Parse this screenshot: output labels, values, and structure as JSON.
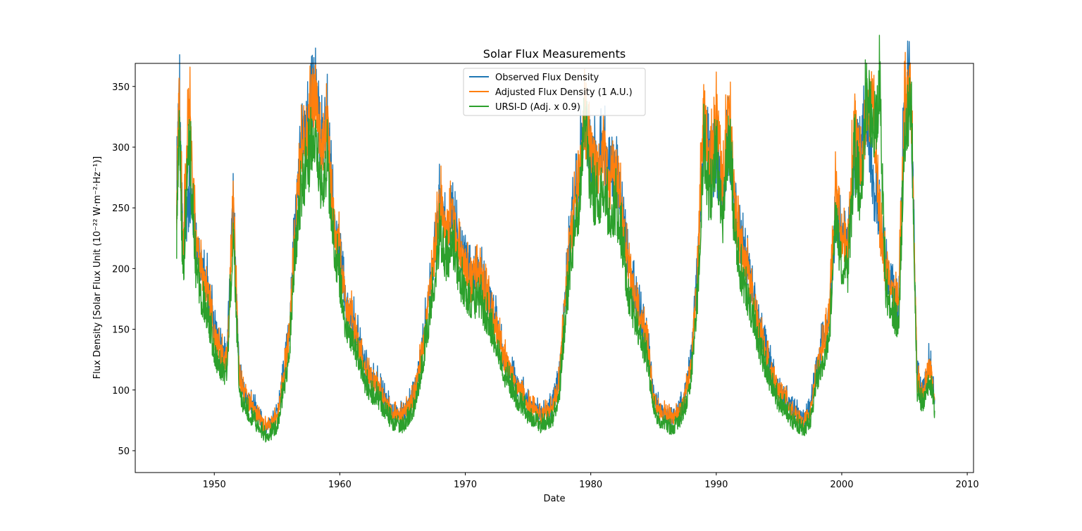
{
  "chart_data": {
    "type": "line",
    "title": "Solar Flux Measurements",
    "xlabel": "Date",
    "ylabel": "Flux Density [Solar Flux Unit (10⁻²² W·m⁻²·Hz⁻¹)]",
    "xlim": [
      1943.7,
      2010.5
    ],
    "ylim": [
      32,
      369
    ],
    "x_ticks": [
      1950,
      1960,
      1970,
      1980,
      1990,
      2000,
      2010
    ],
    "y_ticks": [
      50,
      100,
      150,
      200,
      250,
      300,
      350
    ],
    "grid": false,
    "legend_position": "top-center",
    "x_range": [
      1947.0,
      2007.4
    ],
    "series": [
      {
        "name": "Observed Flux Density",
        "color": "#1f77b4",
        "x": [
          1947.0,
          1947.2,
          1947.5,
          1948.0,
          1948.5,
          1949.0,
          1949.5,
          1950.0,
          1950.5,
          1951.0,
          1951.5,
          1952.0,
          1952.5,
          1953.0,
          1953.5,
          1954.0,
          1954.5,
          1955.0,
          1955.5,
          1956.0,
          1956.5,
          1957.0,
          1957.5,
          1958.0,
          1958.5,
          1959.0,
          1959.5,
          1960.0,
          1960.5,
          1961.0,
          1961.5,
          1962.0,
          1962.5,
          1963.0,
          1963.5,
          1964.0,
          1964.5,
          1965.0,
          1965.5,
          1966.0,
          1966.5,
          1967.0,
          1967.5,
          1968.0,
          1968.5,
          1969.0,
          1969.5,
          1970.0,
          1970.5,
          1971.0,
          1971.5,
          1972.0,
          1972.5,
          1973.0,
          1973.5,
          1974.0,
          1974.5,
          1975.0,
          1975.5,
          1976.0,
          1976.5,
          1977.0,
          1977.5,
          1978.0,
          1978.5,
          1979.0,
          1979.5,
          1980.0,
          1980.5,
          1981.0,
          1981.5,
          1982.0,
          1982.5,
          1983.0,
          1983.5,
          1984.0,
          1984.5,
          1985.0,
          1985.5,
          1986.0,
          1986.5,
          1987.0,
          1987.5,
          1988.0,
          1988.5,
          1989.0,
          1989.5,
          1990.0,
          1990.5,
          1991.0,
          1991.5,
          1992.0,
          1992.5,
          1993.0,
          1993.5,
          1994.0,
          1994.5,
          1995.0,
          1995.5,
          1996.0,
          1996.5,
          1997.0,
          1997.5,
          1998.0,
          1998.5,
          1999.0,
          1999.5,
          2000.0,
          2000.5,
          2001.0,
          2001.5,
          2002.0,
          2002.5,
          2003.0,
          2003.5,
          2004.0,
          2004.5,
          2005.0,
          2005.5,
          2006.0,
          2006.5,
          2007.0,
          2007.4
        ],
        "values": [
          260,
          350,
          215,
          258,
          230,
          200,
          185,
          150,
          135,
          128,
          255,
          110,
          95,
          88,
          80,
          70,
          72,
          80,
          110,
          150,
          250,
          305,
          322,
          354,
          298,
          318,
          245,
          215,
          170,
          160,
          140,
          120,
          110,
          105,
          95,
          85,
          80,
          80,
          88,
          100,
          130,
          170,
          210,
          262,
          230,
          245,
          215,
          205,
          190,
          200,
          185,
          173,
          155,
          130,
          120,
          105,
          100,
          90,
          85,
          80,
          83,
          88,
          110,
          185,
          240,
          270,
          330,
          298,
          285,
          305,
          270,
          282,
          250,
          200,
          180,
          160,
          140,
          95,
          85,
          80,
          78,
          83,
          95,
          125,
          200,
          302,
          285,
          280,
          270,
          303,
          250,
          220,
          200,
          175,
          150,
          130,
          115,
          100,
          95,
          85,
          80,
          75,
          85,
          120,
          140,
          160,
          238,
          225,
          220,
          283,
          290,
          331,
          262,
          242,
          200,
          190,
          165,
          335,
          352,
          110,
          100,
          125,
          93
        ]
      },
      {
        "name": "Adjusted Flux Density (1 A.U.)",
        "color": "#ff7f0e",
        "x": [
          1947.0,
          1947.2,
          1947.5,
          1948.0,
          1948.5,
          1949.0,
          1949.5,
          1950.0,
          1950.5,
          1951.0,
          1951.5,
          1952.0,
          1952.5,
          1953.0,
          1953.5,
          1954.0,
          1954.5,
          1955.0,
          1955.5,
          1956.0,
          1956.5,
          1957.0,
          1957.5,
          1958.0,
          1958.5,
          1959.0,
          1959.5,
          1960.0,
          1960.5,
          1961.0,
          1961.5,
          1962.0,
          1962.5,
          1963.0,
          1963.5,
          1964.0,
          1964.5,
          1965.0,
          1965.5,
          1966.0,
          1966.5,
          1967.0,
          1967.5,
          1968.0,
          1968.5,
          1969.0,
          1969.5,
          1970.0,
          1970.5,
          1971.0,
          1971.5,
          1972.0,
          1972.5,
          1973.0,
          1973.5,
          1974.0,
          1974.5,
          1975.0,
          1975.5,
          1976.0,
          1976.5,
          1977.0,
          1977.5,
          1978.0,
          1978.5,
          1979.0,
          1979.5,
          1980.0,
          1980.5,
          1981.0,
          1981.5,
          1982.0,
          1982.5,
          1983.0,
          1983.5,
          1984.0,
          1984.5,
          1985.0,
          1985.5,
          1986.0,
          1986.5,
          1987.0,
          1987.5,
          1988.0,
          1988.5,
          1989.0,
          1989.5,
          1990.0,
          1990.5,
          1991.0,
          1991.5,
          1992.0,
          1992.5,
          1993.0,
          1993.5,
          1994.0,
          1994.5,
          1995.0,
          1995.5,
          1996.0,
          1996.5,
          1997.0,
          1997.5,
          1998.0,
          1998.5,
          1999.0,
          1999.5,
          2000.0,
          2000.5,
          2001.0,
          2001.5,
          2002.0,
          2002.5,
          2003.0,
          2003.5,
          2004.0,
          2004.5,
          2005.0,
          2005.5,
          2006.0,
          2006.5,
          2007.0,
          2007.4
        ],
        "values": [
          254,
          347,
          210,
          342,
          225,
          195,
          180,
          145,
          130,
          125,
          256,
          108,
          93,
          86,
          78,
          69,
          71,
          78,
          108,
          148,
          245,
          300,
          318,
          350,
          295,
          318,
          242,
          212,
          168,
          158,
          138,
          118,
          108,
          103,
          93,
          83,
          79,
          79,
          86,
          98,
          128,
          168,
          208,
          255,
          228,
          246,
          212,
          202,
          188,
          198,
          182,
          170,
          152,
          128,
          118,
          103,
          98,
          88,
          83,
          79,
          82,
          86,
          108,
          182,
          235,
          265,
          325,
          295,
          280,
          300,
          267,
          278,
          247,
          197,
          178,
          158,
          138,
          93,
          83,
          79,
          77,
          81,
          93,
          122,
          197,
          335,
          280,
          328,
          267,
          348,
          247,
          217,
          197,
          172,
          148,
          128,
          113,
          98,
          93,
          83,
          79,
          74,
          83,
          118,
          138,
          157,
          270,
          222,
          217,
          325,
          280,
          331,
          335,
          238,
          198,
          188,
          163,
          330,
          352,
          108,
          98,
          122,
          92
        ]
      },
      {
        "name": "URSI-D (Adj. x 0.9)",
        "color": "#2ca02c",
        "x": [
          1947.0,
          1947.2,
          1947.5,
          1948.0,
          1948.5,
          1949.0,
          1949.5,
          1950.0,
          1950.5,
          1951.0,
          1951.5,
          1952.0,
          1952.5,
          1953.0,
          1953.5,
          1954.0,
          1954.5,
          1955.0,
          1955.5,
          1956.0,
          1956.5,
          1957.0,
          1957.5,
          1958.0,
          1958.5,
          1959.0,
          1959.5,
          1960.0,
          1960.5,
          1961.0,
          1961.5,
          1962.0,
          1962.5,
          1963.0,
          1963.5,
          1964.0,
          1964.5,
          1965.0,
          1965.5,
          1966.0,
          1966.5,
          1967.0,
          1967.5,
          1968.0,
          1968.5,
          1969.0,
          1969.5,
          1970.0,
          1970.5,
          1971.0,
          1971.5,
          1972.0,
          1972.5,
          1973.0,
          1973.5,
          1974.0,
          1974.5,
          1975.0,
          1975.5,
          1976.0,
          1976.5,
          1977.0,
          1977.5,
          1978.0,
          1978.5,
          1979.0,
          1979.5,
          1980.0,
          1980.5,
          1981.0,
          1981.5,
          1982.0,
          1982.5,
          1983.0,
          1983.5,
          1984.0,
          1984.5,
          1985.0,
          1985.5,
          1986.0,
          1986.5,
          1987.0,
          1987.5,
          1988.0,
          1988.5,
          1989.0,
          1989.5,
          1990.0,
          1990.5,
          1991.0,
          1991.5,
          1992.0,
          1992.5,
          1993.0,
          1993.5,
          1994.0,
          1994.5,
          1995.0,
          1995.5,
          1996.0,
          1996.5,
          1997.0,
          1997.5,
          1998.0,
          1998.5,
          1999.0,
          1999.5,
          2000.0,
          2000.5,
          2001.0,
          2001.5,
          2002.0,
          2002.5,
          2003.0,
          2003.5,
          2004.0,
          2004.5,
          2005.0,
          2005.5,
          2006.0,
          2006.5,
          2007.0,
          2007.4
        ],
        "values": [
          228,
          323,
          190,
          308,
          203,
          176,
          162,
          131,
          117,
          112,
          230,
          97,
          84,
          77,
          70,
          62,
          64,
          70,
          97,
          133,
          222,
          270,
          286,
          315,
          265,
          286,
          218,
          191,
          151,
          142,
          124,
          106,
          97,
          93,
          84,
          75,
          71,
          71,
          77,
          88,
          115,
          151,
          187,
          230,
          205,
          221,
          191,
          182,
          169,
          178,
          164,
          153,
          137,
          115,
          106,
          93,
          88,
          79,
          75,
          71,
          74,
          77,
          97,
          164,
          212,
          239,
          330,
          266,
          252,
          270,
          240,
          250,
          222,
          177,
          160,
          142,
          124,
          84,
          75,
          71,
          69,
          73,
          84,
          110,
          177,
          302,
          252,
          295,
          240,
          313,
          222,
          195,
          177,
          155,
          133,
          115,
          102,
          88,
          84,
          75,
          71,
          67,
          75,
          106,
          124,
          141,
          243,
          200,
          195,
          292,
          252,
          351,
          302,
          346,
          178,
          169,
          147,
          297,
          348,
          97,
          88,
          110,
          83
        ]
      }
    ]
  }
}
